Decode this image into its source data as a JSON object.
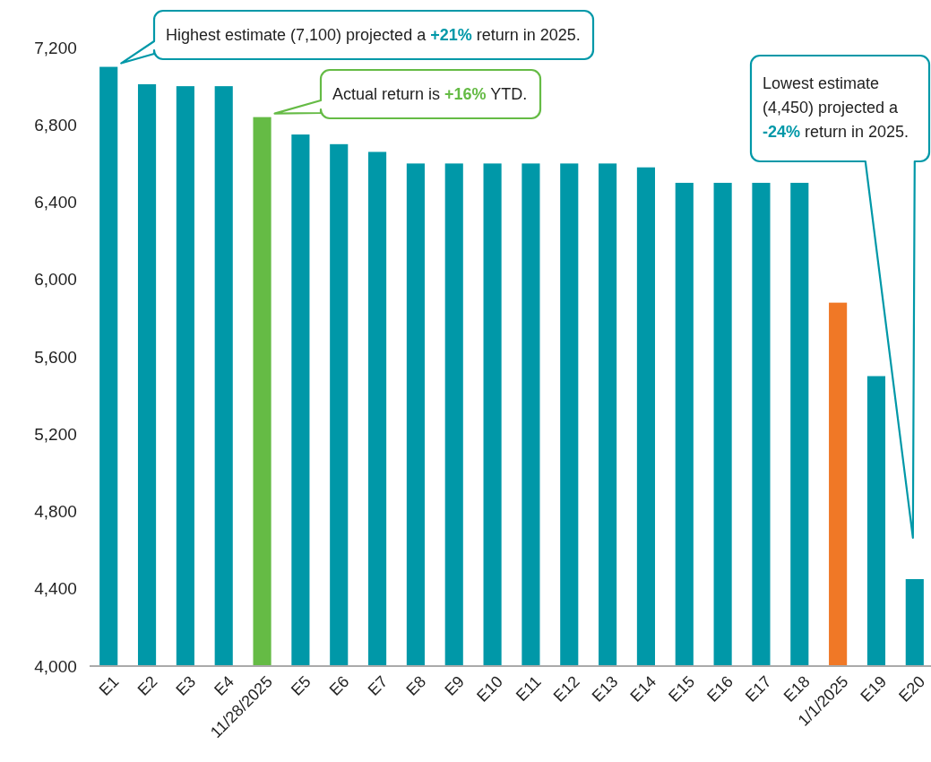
{
  "chart_data": {
    "type": "bar",
    "categories": [
      "E1",
      "E2",
      "E3",
      "E4",
      "11/28/2025",
      "E5",
      "E6",
      "E7",
      "E8",
      "E9",
      "E10",
      "E11",
      "E12",
      "E13",
      "E14",
      "E15",
      "E16",
      "E17",
      "E18",
      "1/1/2025",
      "E19",
      "E20"
    ],
    "values": [
      7100,
      7010,
      7000,
      7000,
      6840,
      6750,
      6700,
      6660,
      6600,
      6600,
      6600,
      6600,
      6600,
      6600,
      6580,
      6500,
      6500,
      6500,
      6500,
      5880,
      5500,
      4450
    ],
    "colors": [
      "#0098a8",
      "#0098a8",
      "#0098a8",
      "#0098a8",
      "#65bb45",
      "#0098a8",
      "#0098a8",
      "#0098a8",
      "#0098a8",
      "#0098a8",
      "#0098a8",
      "#0098a8",
      "#0098a8",
      "#0098a8",
      "#0098a8",
      "#0098a8",
      "#0098a8",
      "#0098a8",
      "#0098a8",
      "#f07826",
      "#0098a8",
      "#0098a8"
    ],
    "ylim": [
      4000,
      7200
    ],
    "yticks": [
      {
        "value": 4000,
        "label": "4,000"
      },
      {
        "value": 4400,
        "label": "4,400"
      },
      {
        "value": 4800,
        "label": "4,800"
      },
      {
        "value": 5200,
        "label": "5,200"
      },
      {
        "value": 5600,
        "label": "5,600"
      },
      {
        "value": 6000,
        "label": "6,000"
      },
      {
        "value": 6400,
        "label": "6,400"
      },
      {
        "value": 6800,
        "label": "6,800"
      },
      {
        "value": 7200,
        "label": "7,200"
      }
    ],
    "annotations": [
      "Highest estimate (7,100) projected a +21% return in 2025.",
      "Actual return is +16% YTD.",
      "Lowest estimate (4,450) projected a -24% return in 2025."
    ]
  }
}
